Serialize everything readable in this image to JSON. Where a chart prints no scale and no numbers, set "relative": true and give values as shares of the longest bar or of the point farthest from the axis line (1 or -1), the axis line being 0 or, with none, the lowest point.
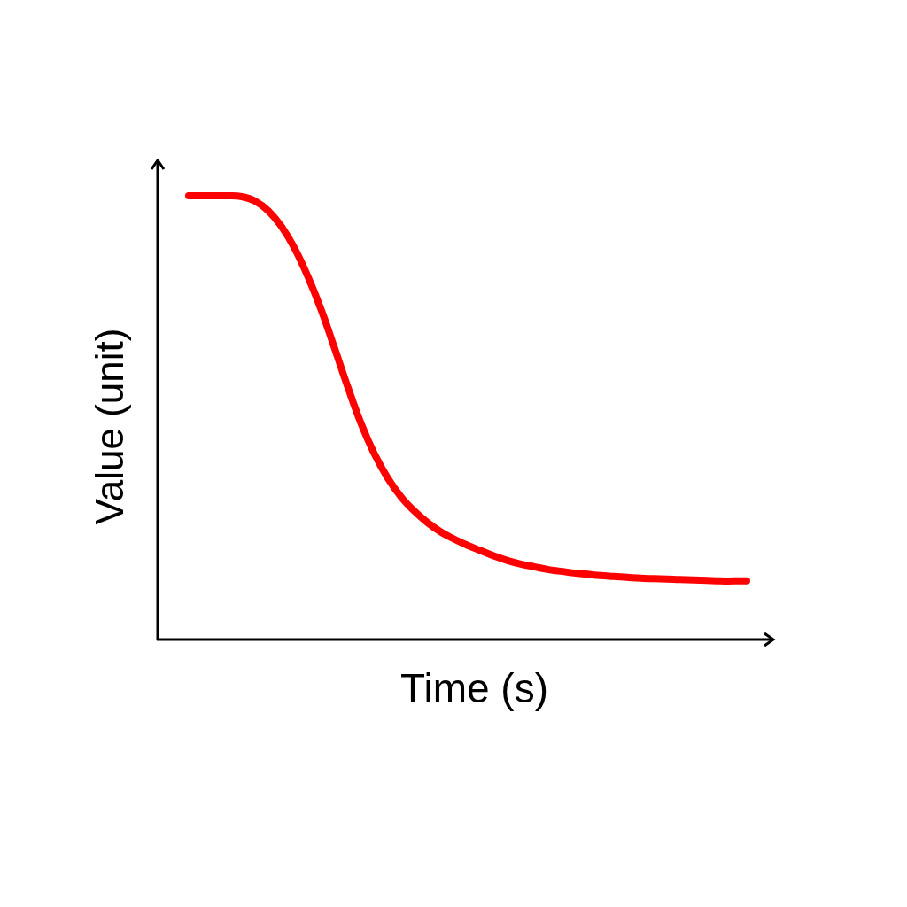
{
  "chart_data": {
    "type": "line",
    "xlabel": "Time (s)",
    "ylabel": "Value (unit)",
    "relative": true,
    "tick_labels": false,
    "marker": "none",
    "line_style": "solid",
    "color": "#ff0000",
    "categories": [
      null,
      null,
      null,
      null,
      null,
      null,
      null,
      null,
      null,
      null,
      null,
      null,
      null,
      null,
      null,
      null,
      null,
      null,
      null,
      null,
      null,
      null,
      null,
      null,
      null,
      null,
      null,
      null,
      null,
      null,
      null,
      null,
      null,
      null,
      null,
      null,
      null,
      null,
      null,
      null,
      null,
      null,
      null
    ],
    "values": [
      1,
      1,
      1,
      1,
      0.998,
      0.988,
      0.966,
      0.93,
      0.88,
      0.816,
      0.741,
      0.655,
      0.567,
      0.485,
      0.417,
      0.363,
      0.321,
      0.289,
      0.263,
      0.242,
      0.226,
      0.212,
      0.2,
      0.188,
      0.178,
      0.17,
      0.164,
      0.158,
      0.154,
      0.15,
      0.147,
      0.144,
      0.142,
      0.14,
      0.138,
      0.137,
      0.136,
      0.135,
      0.134,
      0.133,
      0.132,
      0.132,
      0.132
    ]
  }
}
